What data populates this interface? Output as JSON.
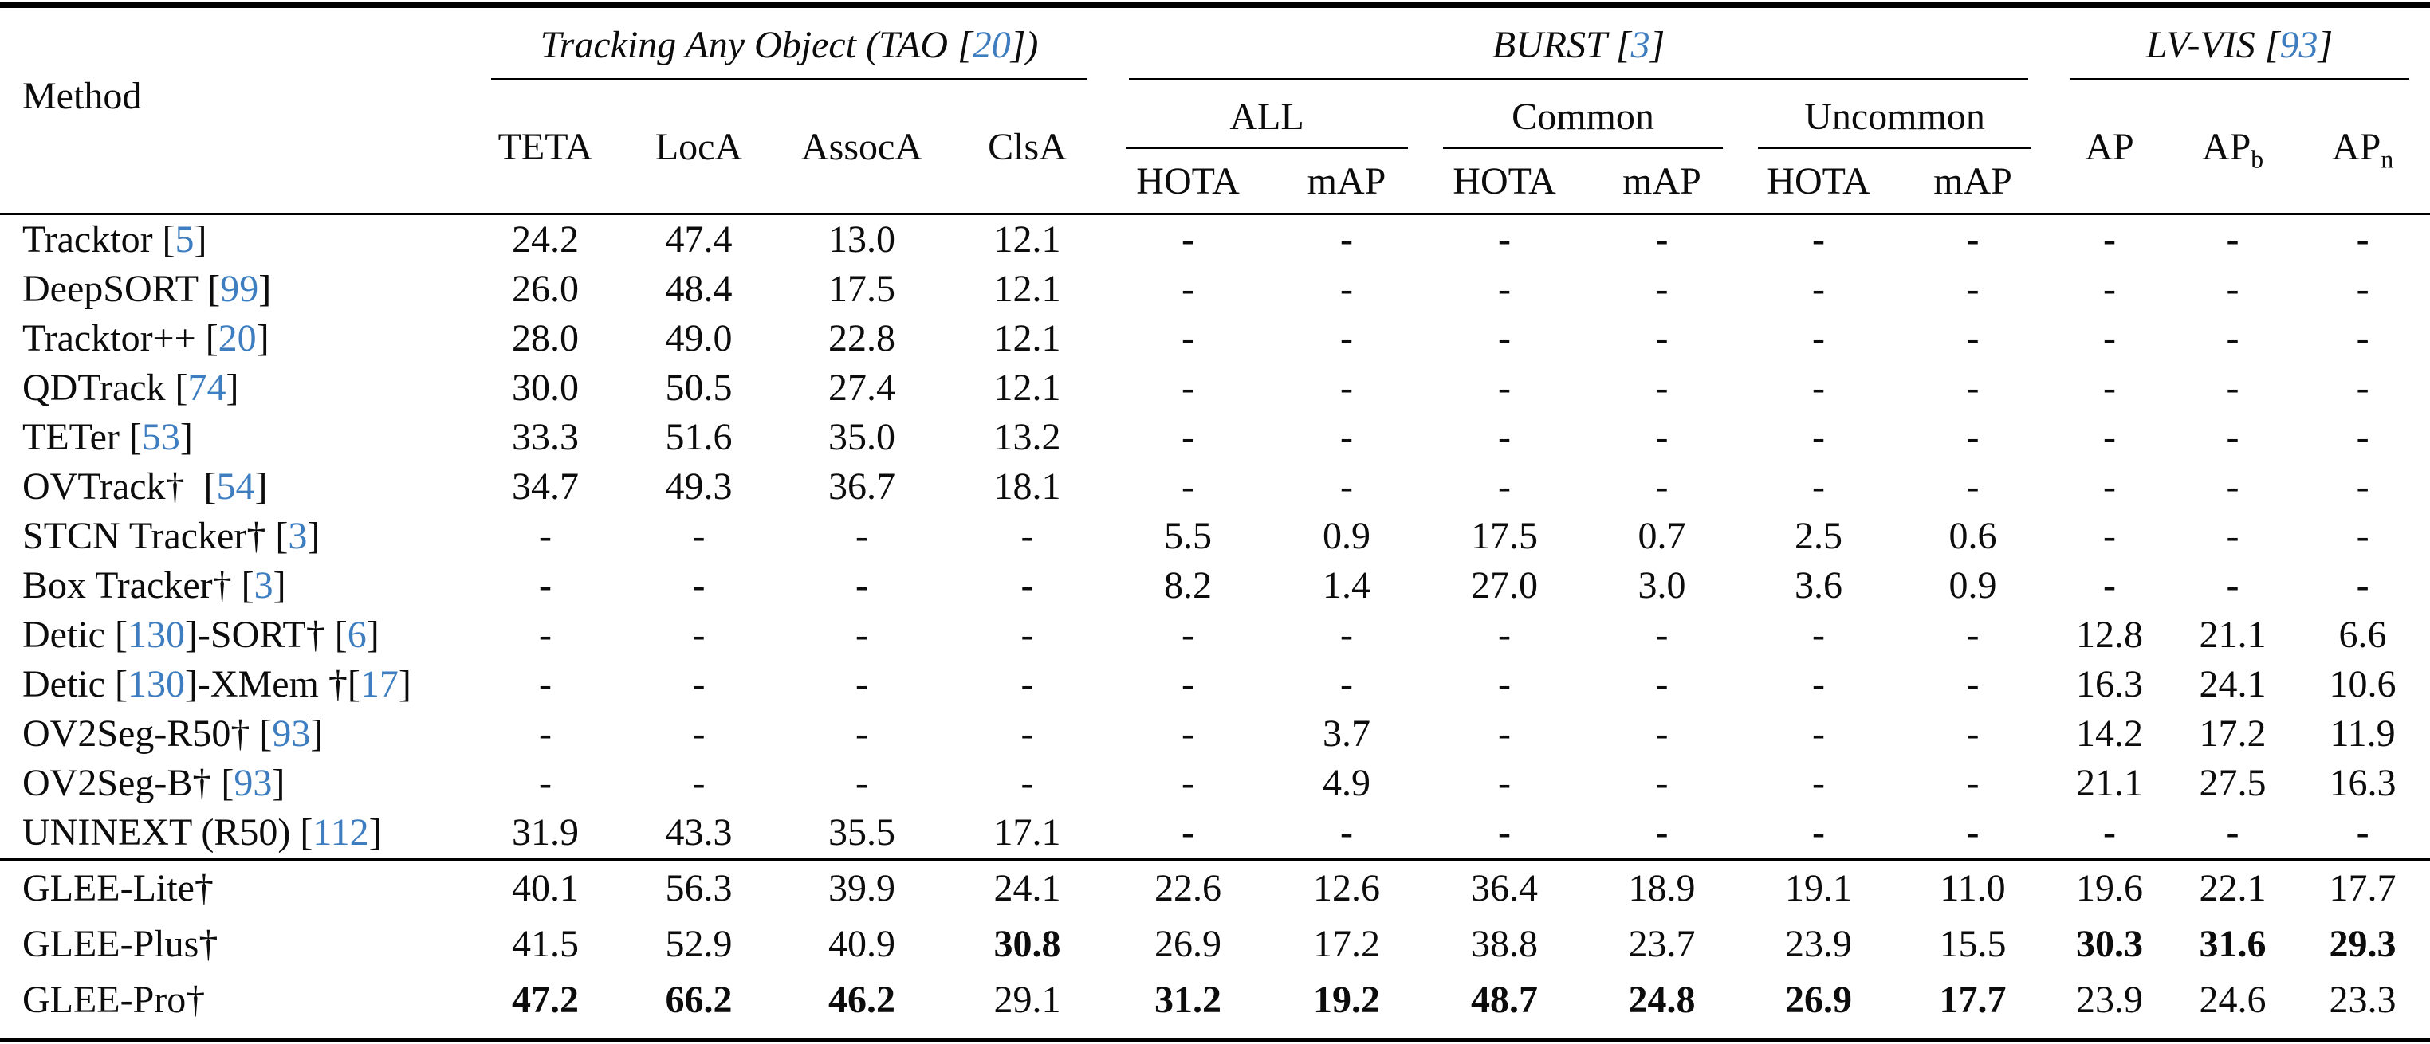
{
  "colors": {
    "cite_blue": "#3E7EC0",
    "rule_black": "#000000"
  },
  "table": {
    "header": {
      "method_label": "Method",
      "groups": [
        {
          "name": "tao",
          "title_parts": [
            {
              "t": "Tracking Any Object (TAO ["
            },
            {
              "c": "20"
            },
            {
              "t": "])"
            }
          ]
        },
        {
          "name": "burst",
          "title_parts": [
            {
              "t": "BURST ["
            },
            {
              "c": "3"
            },
            {
              "t": "]"
            }
          ]
        },
        {
          "name": "lvvis",
          "title_parts": [
            {
              "t": "LV-VIS ["
            },
            {
              "c": "93"
            },
            {
              "t": "]"
            }
          ]
        }
      ],
      "tao_cols": [
        "TETA",
        "LocA",
        "AssocA",
        "ClsA"
      ],
      "burst": {
        "subgroups": [
          {
            "label": "ALL",
            "metrics": [
              "HOTA",
              "mAP"
            ]
          },
          {
            "label": "Common",
            "metrics": [
              "HOTA",
              "mAP"
            ]
          },
          {
            "label": "Uncommon",
            "metrics": [
              "HOTA",
              "mAP"
            ]
          }
        ]
      },
      "lvvis_cols": [
        {
          "label": "AP",
          "sub": ""
        },
        {
          "label": "AP",
          "sub": "b"
        },
        {
          "label": "AP",
          "sub": "n"
        }
      ]
    },
    "rows": [
      {
        "method_parts": [
          {
            "t": "Tracktor ["
          },
          {
            "c": "5"
          },
          {
            "t": "]"
          }
        ],
        "values": [
          "24.2",
          "47.4",
          "13.0",
          "12.1",
          "-",
          "-",
          "-",
          "-",
          "-",
          "-",
          "-",
          "-",
          "-"
        ]
      },
      {
        "method_parts": [
          {
            "t": "DeepSORT ["
          },
          {
            "c": "99"
          },
          {
            "t": "]"
          }
        ],
        "values": [
          "26.0",
          "48.4",
          "17.5",
          "12.1",
          "-",
          "-",
          "-",
          "-",
          "-",
          "-",
          "-",
          "-",
          "-"
        ]
      },
      {
        "method_parts": [
          {
            "t": "Tracktor++ ["
          },
          {
            "c": "20"
          },
          {
            "t": "]"
          }
        ],
        "values": [
          "28.0",
          "49.0",
          "22.8",
          "12.1",
          "-",
          "-",
          "-",
          "-",
          "-",
          "-",
          "-",
          "-",
          "-"
        ]
      },
      {
        "method_parts": [
          {
            "t": "QDTrack ["
          },
          {
            "c": "74"
          },
          {
            "t": "]"
          }
        ],
        "values": [
          "30.0",
          "50.5",
          "27.4",
          "12.1",
          "-",
          "-",
          "-",
          "-",
          "-",
          "-",
          "-",
          "-",
          "-"
        ]
      },
      {
        "method_parts": [
          {
            "t": "TETer ["
          },
          {
            "c": "53"
          },
          {
            "t": "]"
          }
        ],
        "values": [
          "33.3",
          "51.6",
          "35.0",
          "13.2",
          "-",
          "-",
          "-",
          "-",
          "-",
          "-",
          "-",
          "-",
          "-"
        ]
      },
      {
        "method_parts": [
          {
            "t": "OVTrack†  ["
          },
          {
            "c": "54"
          },
          {
            "t": "]"
          }
        ],
        "values": [
          "34.7",
          "49.3",
          "36.7",
          "18.1",
          "-",
          "-",
          "-",
          "-",
          "-",
          "-",
          "-",
          "-",
          "-"
        ]
      },
      {
        "method_parts": [
          {
            "t": "STCN Tracker† ["
          },
          {
            "c": "3"
          },
          {
            "t": "]"
          }
        ],
        "values": [
          "-",
          "-",
          "-",
          "-",
          "5.5",
          "0.9",
          "17.5",
          "0.7",
          "2.5",
          "0.6",
          "-",
          "-",
          "-"
        ]
      },
      {
        "method_parts": [
          {
            "t": "Box Tracker† ["
          },
          {
            "c": "3"
          },
          {
            "t": "]"
          }
        ],
        "values": [
          "-",
          "-",
          "-",
          "-",
          "8.2",
          "1.4",
          "27.0",
          "3.0",
          "3.6",
          "0.9",
          "-",
          "-",
          "-"
        ]
      },
      {
        "method_parts": [
          {
            "t": "Detic ["
          },
          {
            "c": "130"
          },
          {
            "t": "]-SORT† ["
          },
          {
            "c": "6"
          },
          {
            "t": "]"
          }
        ],
        "values": [
          "-",
          "-",
          "-",
          "-",
          "-",
          "-",
          "-",
          "-",
          "-",
          "-",
          "12.8",
          "21.1",
          "6.6"
        ]
      },
      {
        "method_parts": [
          {
            "t": "Detic ["
          },
          {
            "c": "130"
          },
          {
            "t": "]-XMem †["
          },
          {
            "c": "17"
          },
          {
            "t": "]"
          }
        ],
        "values": [
          "-",
          "-",
          "-",
          "-",
          "-",
          "-",
          "-",
          "-",
          "-",
          "-",
          "16.3",
          "24.1",
          "10.6"
        ]
      },
      {
        "method_parts": [
          {
            "t": "OV2Seg-R50† ["
          },
          {
            "c": "93"
          },
          {
            "t": "]"
          }
        ],
        "values": [
          "-",
          "-",
          "-",
          "-",
          "-",
          "3.7",
          "-",
          "-",
          "-",
          "-",
          "14.2",
          "17.2",
          "11.9"
        ]
      },
      {
        "method_parts": [
          {
            "t": "OV2Seg-B† ["
          },
          {
            "c": "93"
          },
          {
            "t": "]"
          }
        ],
        "values": [
          "-",
          "-",
          "-",
          "-",
          "-",
          "4.9",
          "-",
          "-",
          "-",
          "-",
          "21.1",
          "27.5",
          "16.3"
        ]
      },
      {
        "method_parts": [
          {
            "t": "UNINEXT (R50) ["
          },
          {
            "c": "112"
          },
          {
            "t": "]"
          }
        ],
        "values": [
          "31.9",
          "43.3",
          "35.5",
          "17.1",
          "-",
          "-",
          "-",
          "-",
          "-",
          "-",
          "-",
          "-",
          "-"
        ]
      }
    ],
    "glee_rows": [
      {
        "method_parts": [
          {
            "t": "GLEE-Lite†"
          }
        ],
        "values": [
          "40.1",
          "56.3",
          "39.9",
          "24.1",
          "22.6",
          "12.6",
          "36.4",
          "18.9",
          "19.1",
          "11.0",
          "19.6",
          "22.1",
          "17.7"
        ]
      },
      {
        "method_parts": [
          {
            "t": "GLEE-Plus†"
          }
        ],
        "values": [
          "41.5",
          "52.9",
          "40.9",
          {
            "v": "30.8",
            "b": true
          },
          "26.9",
          "17.2",
          "38.8",
          "23.7",
          "23.9",
          "15.5",
          {
            "v": "30.3",
            "b": true
          },
          {
            "v": "31.6",
            "b": true
          },
          {
            "v": "29.3",
            "b": true
          }
        ]
      },
      {
        "method_parts": [
          {
            "t": "GLEE-Pro†"
          }
        ],
        "values": [
          {
            "v": "47.2",
            "b": true
          },
          {
            "v": "66.2",
            "b": true
          },
          {
            "v": "46.2",
            "b": true
          },
          "29.1",
          {
            "v": "31.2",
            "b": true
          },
          {
            "v": "19.2",
            "b": true
          },
          {
            "v": "48.7",
            "b": true
          },
          {
            "v": "24.8",
            "b": true
          },
          {
            "v": "26.9",
            "b": true
          },
          {
            "v": "17.7",
            "b": true
          },
          "23.9",
          "24.6",
          "23.3"
        ]
      }
    ]
  }
}
